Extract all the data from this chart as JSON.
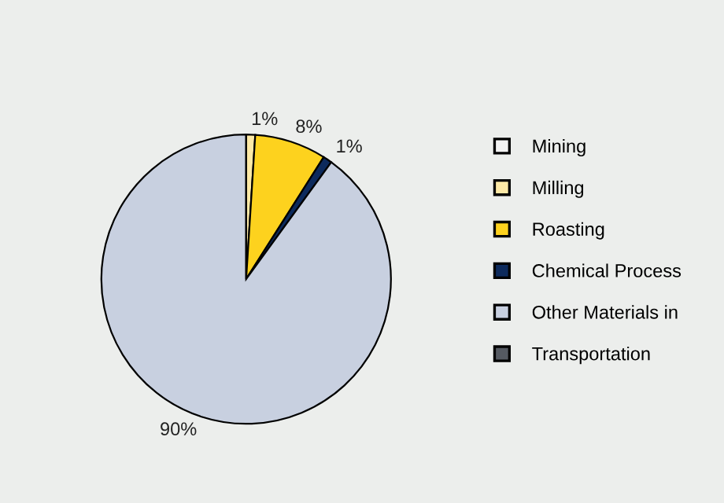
{
  "chart_data": {
    "type": "pie",
    "categories": [
      "Mining",
      "Milling",
      "Roasting",
      "Chemical Process",
      "Other Materials in",
      "Transportation"
    ],
    "values": [
      0,
      1,
      8,
      1,
      90,
      0
    ],
    "value_labels": [
      null,
      "1%",
      "8%",
      "1%",
      "90%",
      null
    ],
    "colors": [
      "#f2f2f2",
      "#fde9a6",
      "#fdd21e",
      "#0d2a5c",
      "#c8d0e0",
      "#555a62"
    ],
    "legend": "right"
  }
}
